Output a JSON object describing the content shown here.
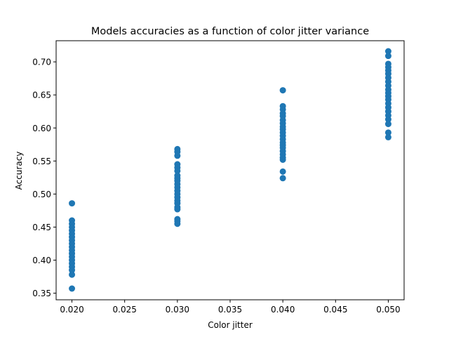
{
  "chart_data": {
    "type": "scatter",
    "title": "Models accuracies as a function of color jitter variance",
    "xlabel": "Color jitter",
    "ylabel": "Accuracy",
    "xlim": [
      0.0185,
      0.0515
    ],
    "ylim": [
      0.34,
      0.732
    ],
    "x_ticks": [
      "0.020",
      "0.025",
      "0.030",
      "0.035",
      "0.040",
      "0.045",
      "0.050"
    ],
    "y_ticks": [
      "0.35",
      "0.40",
      "0.45",
      "0.50",
      "0.55",
      "0.60",
      "0.65",
      "0.70"
    ],
    "grid": false,
    "legend": "none",
    "marker_color": "#1f77b4",
    "series": [
      {
        "points": [
          {
            "x": 0.02,
            "y": 0.486
          },
          {
            "x": 0.02,
            "y": 0.46
          },
          {
            "x": 0.02,
            "y": 0.455
          },
          {
            "x": 0.02,
            "y": 0.45
          },
          {
            "x": 0.02,
            "y": 0.445
          },
          {
            "x": 0.02,
            "y": 0.44
          },
          {
            "x": 0.02,
            "y": 0.435
          },
          {
            "x": 0.02,
            "y": 0.43
          },
          {
            "x": 0.02,
            "y": 0.425
          },
          {
            "x": 0.02,
            "y": 0.42
          },
          {
            "x": 0.02,
            "y": 0.415
          },
          {
            "x": 0.02,
            "y": 0.41
          },
          {
            "x": 0.02,
            "y": 0.405
          },
          {
            "x": 0.02,
            "y": 0.4
          },
          {
            "x": 0.02,
            "y": 0.395
          },
          {
            "x": 0.02,
            "y": 0.39
          },
          {
            "x": 0.02,
            "y": 0.385
          },
          {
            "x": 0.02,
            "y": 0.378
          },
          {
            "x": 0.02,
            "y": 0.357
          },
          {
            "x": 0.03,
            "y": 0.568
          },
          {
            "x": 0.03,
            "y": 0.564
          },
          {
            "x": 0.03,
            "y": 0.558
          },
          {
            "x": 0.03,
            "y": 0.545
          },
          {
            "x": 0.03,
            "y": 0.54
          },
          {
            "x": 0.03,
            "y": 0.535
          },
          {
            "x": 0.03,
            "y": 0.528
          },
          {
            "x": 0.03,
            "y": 0.524
          },
          {
            "x": 0.03,
            "y": 0.52
          },
          {
            "x": 0.03,
            "y": 0.515
          },
          {
            "x": 0.03,
            "y": 0.51
          },
          {
            "x": 0.03,
            "y": 0.505
          },
          {
            "x": 0.03,
            "y": 0.5
          },
          {
            "x": 0.03,
            "y": 0.495
          },
          {
            "x": 0.03,
            "y": 0.49
          },
          {
            "x": 0.03,
            "y": 0.486
          },
          {
            "x": 0.03,
            "y": 0.48
          },
          {
            "x": 0.03,
            "y": 0.477
          },
          {
            "x": 0.03,
            "y": 0.462
          },
          {
            "x": 0.03,
            "y": 0.459
          },
          {
            "x": 0.03,
            "y": 0.455
          },
          {
            "x": 0.04,
            "y": 0.657
          },
          {
            "x": 0.04,
            "y": 0.633
          },
          {
            "x": 0.04,
            "y": 0.628
          },
          {
            "x": 0.04,
            "y": 0.622
          },
          {
            "x": 0.04,
            "y": 0.618
          },
          {
            "x": 0.04,
            "y": 0.612
          },
          {
            "x": 0.04,
            "y": 0.607
          },
          {
            "x": 0.04,
            "y": 0.602
          },
          {
            "x": 0.04,
            "y": 0.598
          },
          {
            "x": 0.04,
            "y": 0.593
          },
          {
            "x": 0.04,
            "y": 0.588
          },
          {
            "x": 0.04,
            "y": 0.583
          },
          {
            "x": 0.04,
            "y": 0.578
          },
          {
            "x": 0.04,
            "y": 0.574
          },
          {
            "x": 0.04,
            "y": 0.57
          },
          {
            "x": 0.04,
            "y": 0.565
          },
          {
            "x": 0.04,
            "y": 0.56
          },
          {
            "x": 0.04,
            "y": 0.555
          },
          {
            "x": 0.04,
            "y": 0.552
          },
          {
            "x": 0.04,
            "y": 0.534
          },
          {
            "x": 0.04,
            "y": 0.524
          },
          {
            "x": 0.05,
            "y": 0.716
          },
          {
            "x": 0.05,
            "y": 0.709
          },
          {
            "x": 0.05,
            "y": 0.697
          },
          {
            "x": 0.05,
            "y": 0.692
          },
          {
            "x": 0.05,
            "y": 0.687
          },
          {
            "x": 0.05,
            "y": 0.682
          },
          {
            "x": 0.05,
            "y": 0.676
          },
          {
            "x": 0.05,
            "y": 0.67
          },
          {
            "x": 0.05,
            "y": 0.664
          },
          {
            "x": 0.05,
            "y": 0.658
          },
          {
            "x": 0.05,
            "y": 0.653
          },
          {
            "x": 0.05,
            "y": 0.648
          },
          {
            "x": 0.05,
            "y": 0.643
          },
          {
            "x": 0.05,
            "y": 0.637
          },
          {
            "x": 0.05,
            "y": 0.631
          },
          {
            "x": 0.05,
            "y": 0.625
          },
          {
            "x": 0.05,
            "y": 0.619
          },
          {
            "x": 0.05,
            "y": 0.613
          },
          {
            "x": 0.05,
            "y": 0.606
          },
          {
            "x": 0.05,
            "y": 0.593
          },
          {
            "x": 0.05,
            "y": 0.586
          }
        ]
      }
    ]
  }
}
